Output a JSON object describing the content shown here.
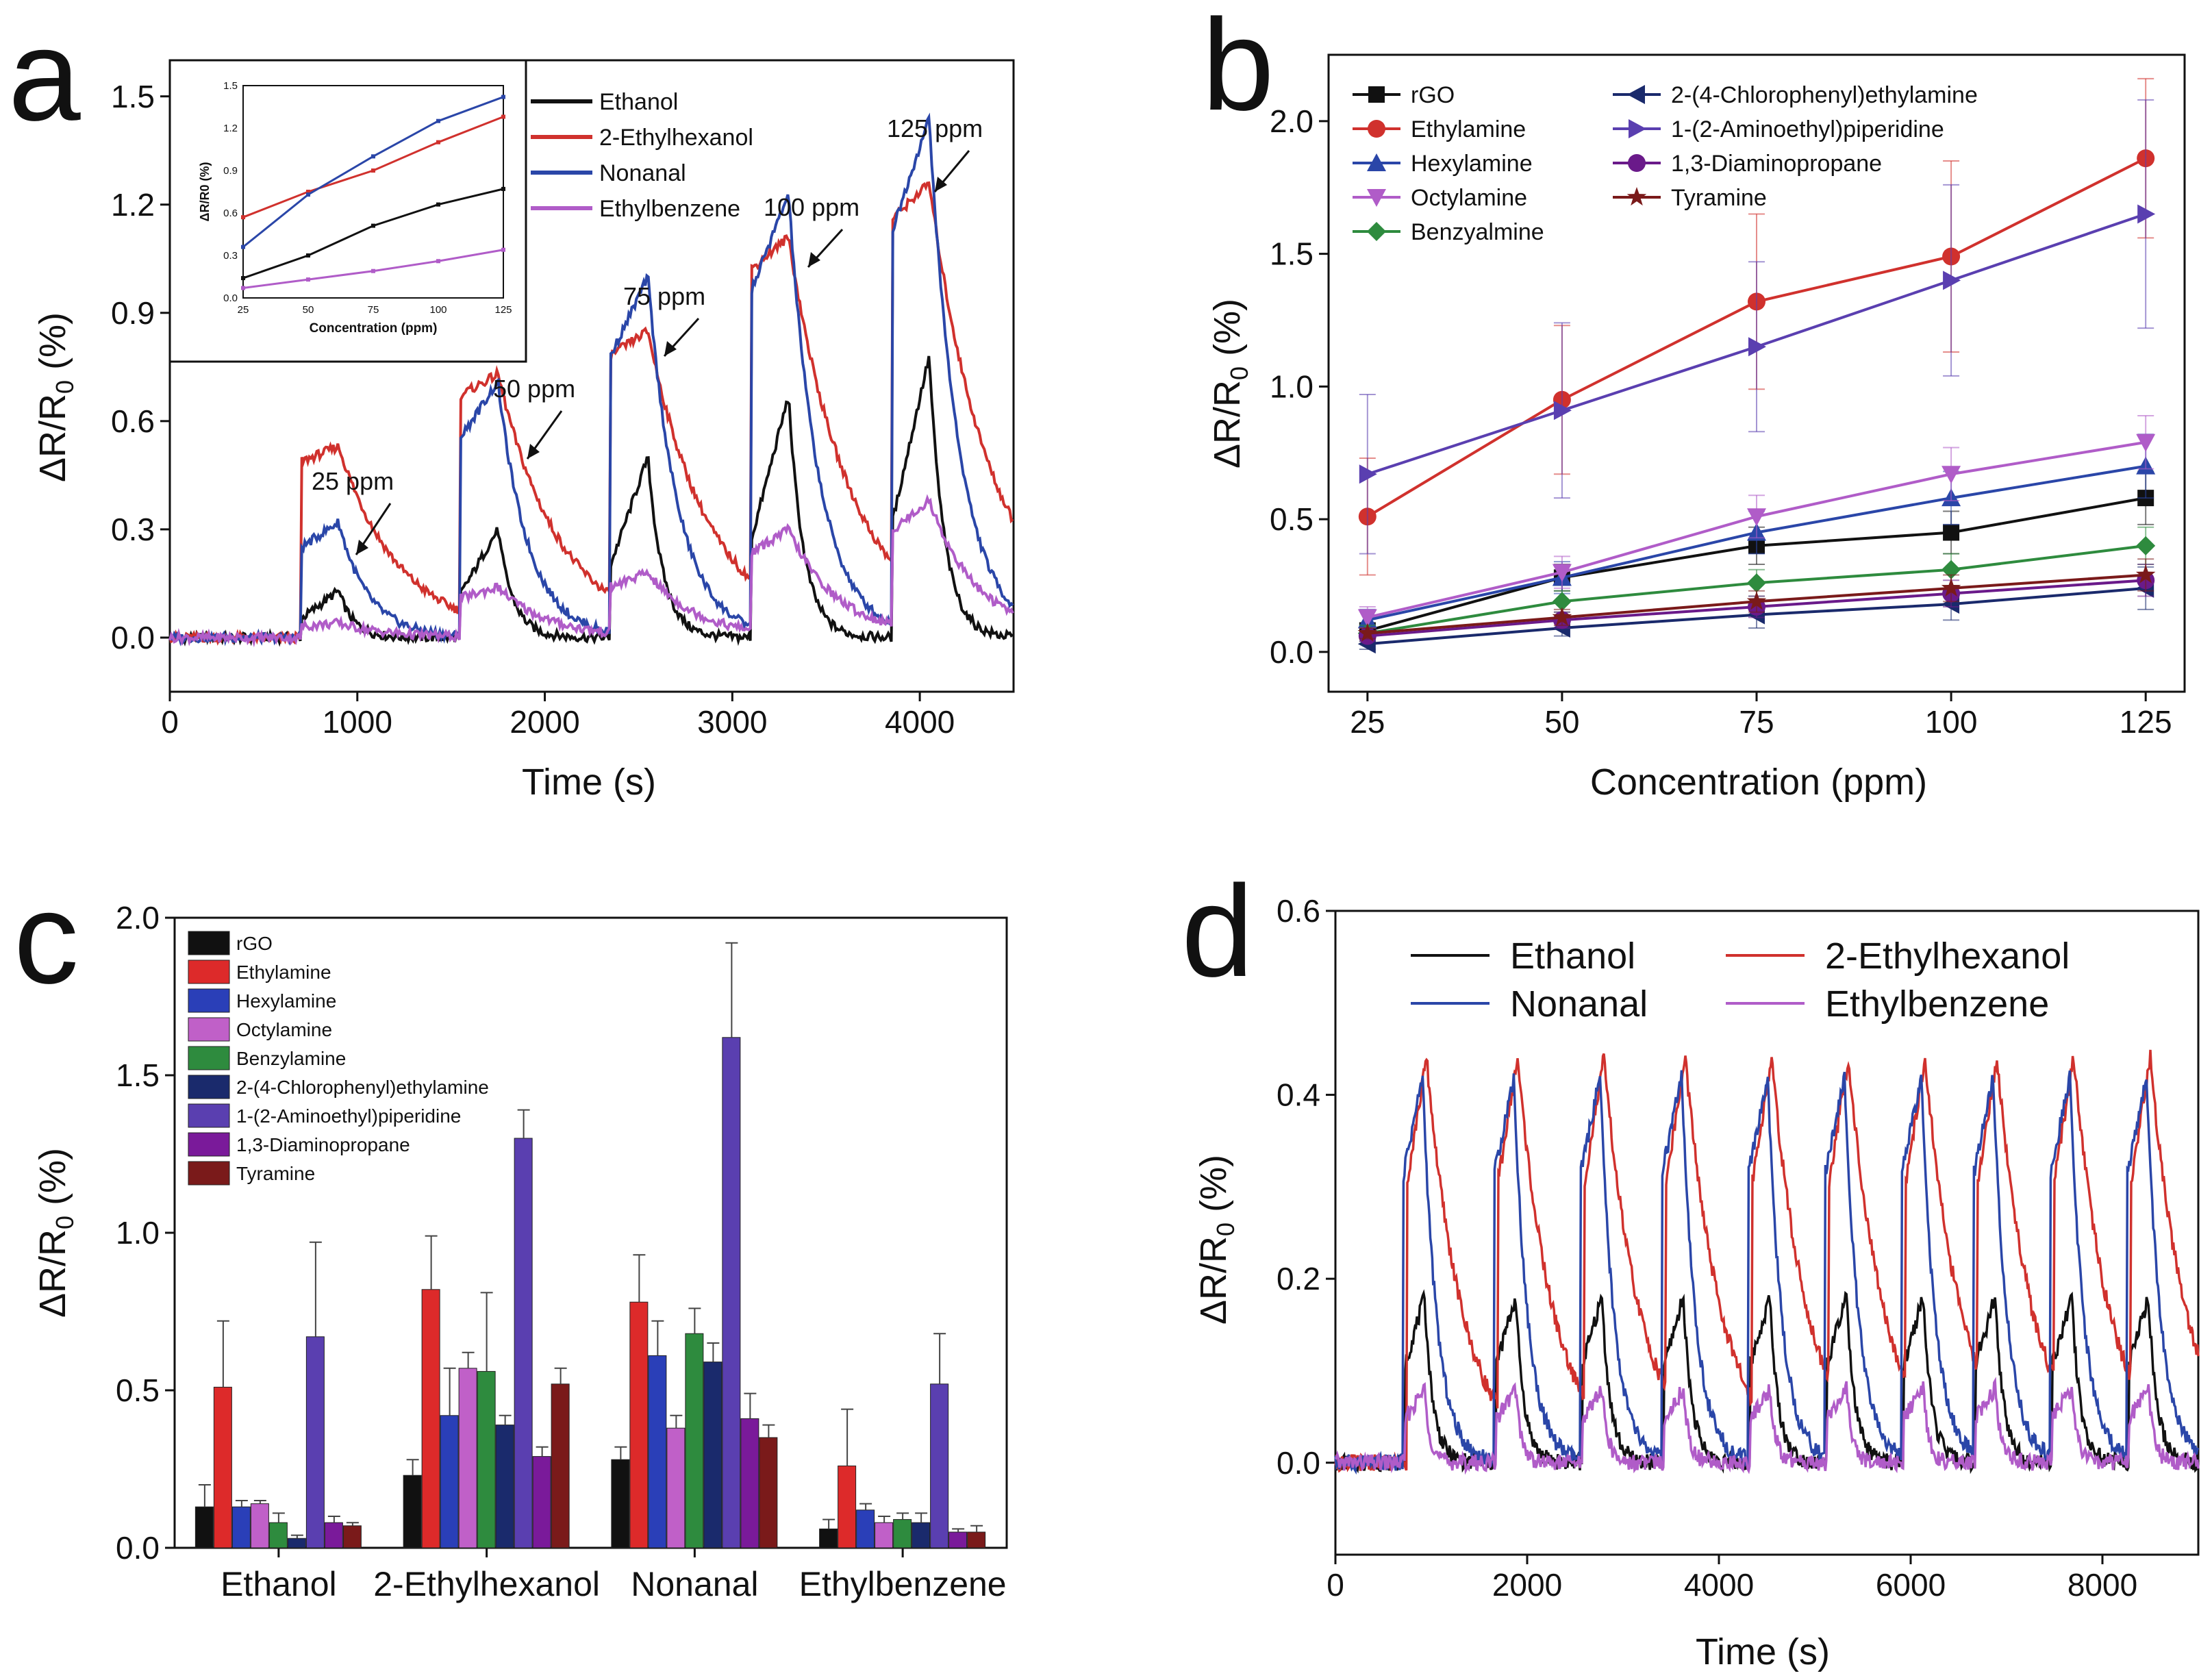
{
  "chart_data": [
    {
      "panel": "a",
      "type": "line",
      "xlabel": "Time (s)",
      "ylabel": "ΔR/R0 (%)",
      "xlim": [
        0,
        4500
      ],
      "ylim": [
        -0.15,
        1.6
      ],
      "xticks": [
        0,
        1000,
        2000,
        3000,
        4000
      ],
      "yticks": [
        0.0,
        0.3,
        0.6,
        0.9,
        1.2,
        1.5
      ],
      "pulse_starts": [
        700,
        1550,
        2350,
        3100,
        3850
      ],
      "pulse_duration": 200,
      "pulse_labels": [
        "25 ppm",
        "50 ppm",
        "75 ppm",
        "100 ppm",
        "125 ppm"
      ],
      "series": [
        {
          "name": "Ethanol",
          "color": "#111111",
          "peaks": [
            0.13,
            0.3,
            0.5,
            0.67,
            0.78
          ],
          "tau": 80
        },
        {
          "name": "2-Ethylhexanol",
          "color": "#d0312d",
          "peaks": [
            0.53,
            0.73,
            0.85,
            1.11,
            1.26
          ],
          "tau": 330
        },
        {
          "name": "Nonanal",
          "color": "#2a46a8",
          "peaks": [
            0.32,
            0.71,
            1.0,
            1.23,
            1.44
          ],
          "tau": 160
        },
        {
          "name": "Ethylbenzene",
          "color": "#b05cc8",
          "peaks": [
            0.04,
            0.14,
            0.18,
            0.3,
            0.38
          ],
          "tau": 260
        }
      ],
      "inset": {
        "xlabel": "Concentration (ppm)",
        "ylabel": "ΔR/R0 (%)",
        "x": [
          25,
          50,
          75,
          100,
          125
        ],
        "xlim": [
          25,
          125
        ],
        "ylim": [
          0.0,
          1.5
        ],
        "yticks": [
          0.0,
          0.3,
          0.6,
          0.9,
          1.2,
          1.5
        ],
        "series": [
          {
            "name": "Ethanol",
            "values": [
              0.14,
              0.3,
              0.51,
              0.66,
              0.77
            ]
          },
          {
            "name": "2-Ethylhexanol",
            "values": [
              0.57,
              0.75,
              0.9,
              1.1,
              1.28
            ]
          },
          {
            "name": "Nonanal",
            "values": [
              0.36,
              0.73,
              1.0,
              1.25,
              1.42
            ]
          },
          {
            "name": "Ethylbenzene",
            "values": [
              0.07,
              0.13,
              0.19,
              0.26,
              0.34
            ]
          }
        ]
      }
    },
    {
      "panel": "b",
      "type": "line",
      "xlabel": "Concentration (ppm)",
      "ylabel": "ΔR/R0 (%)",
      "x": [
        25,
        50,
        75,
        100,
        125
      ],
      "xlim": [
        20,
        130
      ],
      "ylim": [
        -0.15,
        2.25
      ],
      "xticks": [
        25,
        50,
        75,
        100,
        125
      ],
      "yticks": [
        0.0,
        0.5,
        1.0,
        1.5,
        2.0
      ],
      "series": [
        {
          "name": "rGO",
          "color": "#111111",
          "marker": "square",
          "values": [
            0.08,
            0.28,
            0.4,
            0.45,
            0.58
          ],
          "err": [
            0.03,
            0.05,
            0.07,
            0.08,
            0.1
          ]
        },
        {
          "name": "Ethylamine",
          "color": "#d0312d",
          "marker": "circle",
          "values": [
            0.51,
            0.95,
            1.32,
            1.49,
            1.86
          ],
          "err": [
            0.22,
            0.28,
            0.33,
            0.36,
            0.3
          ]
        },
        {
          "name": "Hexylamine",
          "color": "#2a46a8",
          "marker": "triangle-up",
          "values": [
            0.12,
            0.28,
            0.45,
            0.58,
            0.7
          ],
          "err": [
            0.04,
            0.06,
            0.08,
            0.1,
            0.12
          ]
        },
        {
          "name": "Octylamine",
          "color": "#b05cc8",
          "marker": "triangle-down",
          "values": [
            0.13,
            0.3,
            0.51,
            0.67,
            0.79
          ],
          "err": [
            0.04,
            0.06,
            0.08,
            0.1,
            0.1
          ]
        },
        {
          "name": "Benzyalmine",
          "color": "#2e8b3e",
          "marker": "diamond",
          "values": [
            0.07,
            0.19,
            0.26,
            0.31,
            0.4
          ],
          "err": [
            0.03,
            0.04,
            0.05,
            0.06,
            0.07
          ]
        },
        {
          "name": "2-(4-Chlorophenyl)ethylamine",
          "color": "#1a2a6c",
          "marker": "triangle-left",
          "values": [
            0.03,
            0.09,
            0.14,
            0.18,
            0.24
          ],
          "err": [
            0.02,
            0.03,
            0.05,
            0.06,
            0.08
          ]
        },
        {
          "name": "1-(2-Aminoethyl)piperidine",
          "color": "#5a3fb0",
          "marker": "triangle-right",
          "values": [
            0.67,
            0.91,
            1.15,
            1.4,
            1.65
          ],
          "err": [
            0.3,
            0.33,
            0.32,
            0.36,
            0.43
          ]
        },
        {
          "name": "1,3-Diaminopropane",
          "color": "#6a1a8a",
          "marker": "circle",
          "values": [
            0.06,
            0.12,
            0.17,
            0.22,
            0.27
          ],
          "err": [
            0.02,
            0.03,
            0.04,
            0.05,
            0.06
          ]
        },
        {
          "name": "Tyramine",
          "color": "#7a1a1a",
          "marker": "star",
          "values": [
            0.07,
            0.13,
            0.19,
            0.24,
            0.29
          ],
          "err": [
            0.02,
            0.03,
            0.04,
            0.05,
            0.06
          ]
        }
      ]
    },
    {
      "panel": "c",
      "type": "bar",
      "xlabel": "",
      "ylabel": "ΔR/R0 (%)",
      "categories": [
        "Ethanol",
        "2-Ethylhexanol",
        "Nonanal",
        "Ethylbenzene"
      ],
      "ylim": [
        0.0,
        2.0
      ],
      "yticks": [
        0.0,
        0.5,
        1.0,
        1.5,
        2.0
      ],
      "series": [
        {
          "name": "rGO",
          "color": "#111111",
          "values": [
            0.13,
            0.23,
            0.28,
            0.06
          ],
          "err": [
            0.07,
            0.05,
            0.04,
            0.03
          ]
        },
        {
          "name": "Ethylamine",
          "color": "#dd2a2a",
          "values": [
            0.51,
            0.82,
            0.78,
            0.26
          ],
          "err": [
            0.21,
            0.17,
            0.15,
            0.18
          ]
        },
        {
          "name": "Hexylamine",
          "color": "#2a3fb8",
          "values": [
            0.13,
            0.42,
            0.61,
            0.12
          ],
          "err": [
            0.02,
            0.15,
            0.11,
            0.02
          ]
        },
        {
          "name": "Octylamine",
          "color": "#c060c8",
          "values": [
            0.14,
            0.57,
            0.38,
            0.08
          ],
          "err": [
            0.01,
            0.05,
            0.04,
            0.02
          ]
        },
        {
          "name": "Benzylamine",
          "color": "#2e8b3e",
          "values": [
            0.08,
            0.56,
            0.68,
            0.09
          ],
          "err": [
            0.03,
            0.25,
            0.08,
            0.02
          ]
        },
        {
          "name": "2-(4-Chlorophenyl)ethylamine",
          "color": "#1a2a6c",
          "values": [
            0.03,
            0.39,
            0.59,
            0.08
          ],
          "err": [
            0.01,
            0.03,
            0.06,
            0.03
          ]
        },
        {
          "name": "1-(2-Aminoethyl)piperidine",
          "color": "#5a3fb0",
          "values": [
            0.67,
            1.3,
            1.62,
            0.52
          ],
          "err": [
            0.3,
            0.09,
            0.3,
            0.16
          ]
        },
        {
          "name": "1,3-Diaminopropane",
          "color": "#7a1a9a",
          "values": [
            0.08,
            0.29,
            0.41,
            0.05
          ],
          "err": [
            0.02,
            0.03,
            0.08,
            0.01
          ]
        },
        {
          "name": "Tyramine",
          "color": "#7a1a1a",
          "values": [
            0.07,
            0.52,
            0.35,
            0.05
          ],
          "err": [
            0.01,
            0.05,
            0.04,
            0.02
          ]
        }
      ]
    },
    {
      "panel": "d",
      "type": "line",
      "xlabel": "Time (s)",
      "ylabel": "ΔR/R0 (%)",
      "xlim": [
        0,
        9000
      ],
      "ylim": [
        -0.1,
        0.6
      ],
      "xticks": [
        0,
        2000,
        4000,
        6000,
        8000
      ],
      "yticks": [
        0.0,
        0.2,
        0.4,
        0.6
      ],
      "cycle_starts": [
        650,
        1600,
        2500,
        3350,
        4250,
        5050,
        5850,
        6600,
        7400,
        8200
      ],
      "pulse_duration": 200,
      "series": [
        {
          "name": "Ethanol",
          "color": "#111111",
          "peak": 0.18,
          "tau": 90
        },
        {
          "name": "2-Ethylhexanol",
          "color": "#d0312d",
          "peak": 0.44,
          "tau": 380
        },
        {
          "name": "Nonanal",
          "color": "#2a46a8",
          "peak": 0.42,
          "tau": 150
        },
        {
          "name": "Ethylbenzene",
          "color": "#b05cc8",
          "peak": 0.08,
          "tau": 60
        }
      ]
    }
  ],
  "labels": {
    "a": {
      "letter": "a",
      "xlabel": "Time (s)",
      "ylabel_main": "ΔR/R",
      "ylabel_sub": "0",
      "ylabel_tail": " (%)"
    },
    "b": {
      "letter": "b",
      "xlabel": "Concentration (ppm)",
      "ylabel_main": "ΔR/R",
      "ylabel_sub": "0",
      "ylabel_tail": " (%)"
    },
    "c": {
      "letter": "c",
      "ylabel_main": "ΔR/R",
      "ylabel_sub": "0",
      "ylabel_tail": " (%)"
    },
    "d": {
      "letter": "d",
      "xlabel": "Time (s)",
      "ylabel_main": "ΔR/R",
      "ylabel_sub": "0",
      "ylabel_tail": " (%)"
    },
    "inset": {
      "xlabel": "Concentration (ppm)",
      "ylabel_main": "ΔR/R",
      "ylabel_sub": "0",
      "ylabel_tail": " (%)"
    }
  }
}
